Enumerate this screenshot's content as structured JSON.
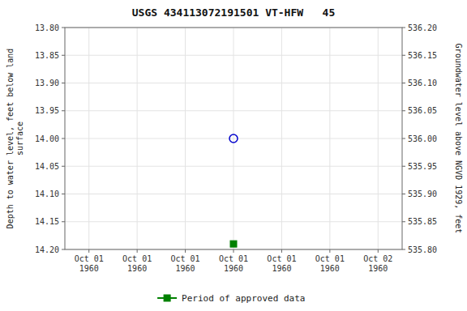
{
  "chart_data": {
    "type": "scatter",
    "title": "USGS 434113072191501 VT-HFW   45",
    "y_label": "Depth to water level, feet below land\nsurface",
    "y2_label": "Groundwater level above NGVD 1929, feet",
    "categories": [
      "Oct 01\n1960",
      "Oct 01\n1960",
      "Oct 01\n1960",
      "Oct 01\n1960",
      "Oct 01\n1960",
      "Oct 01\n1960",
      "Oct 02\n1960"
    ],
    "series": [
      {
        "color": "#0000cc",
        "marker": "open-circle",
        "values": [
          null,
          null,
          null,
          14.0,
          null,
          null,
          null
        ]
      },
      {
        "name": "Period of approved data",
        "color": "#008000",
        "marker": "square",
        "values": [
          null,
          null,
          null,
          14.19,
          null,
          null,
          null
        ]
      }
    ],
    "ylim": [
      14.2,
      13.8
    ],
    "yticks": [
      {
        "value": 13.8,
        "label": "13.80"
      },
      {
        "value": 13.85,
        "label": "13.85"
      },
      {
        "value": 13.9,
        "label": "13.90"
      },
      {
        "value": 13.95,
        "label": "13.95"
      },
      {
        "value": 14.0,
        "label": "14.00"
      },
      {
        "value": 14.05,
        "label": "14.05"
      },
      {
        "value": 14.1,
        "label": "14.10"
      },
      {
        "value": 14.15,
        "label": "14.15"
      },
      {
        "value": 14.2,
        "label": "14.20"
      }
    ],
    "y2lim": [
      535.8,
      536.2
    ],
    "y2ticks": [
      {
        "value": 535.8,
        "label": "535.80"
      },
      {
        "value": 535.85,
        "label": "535.85"
      },
      {
        "value": 535.9,
        "label": "535.90"
      },
      {
        "value": 535.95,
        "label": "535.95"
      },
      {
        "value": 536.0,
        "label": "536.00"
      },
      {
        "value": 536.05,
        "label": "536.05"
      },
      {
        "value": 536.1,
        "label": "536.10"
      },
      {
        "value": 536.15,
        "label": "536.15"
      },
      {
        "value": 536.2,
        "label": "536.20"
      }
    ],
    "grid": true,
    "legend": "bottom"
  }
}
